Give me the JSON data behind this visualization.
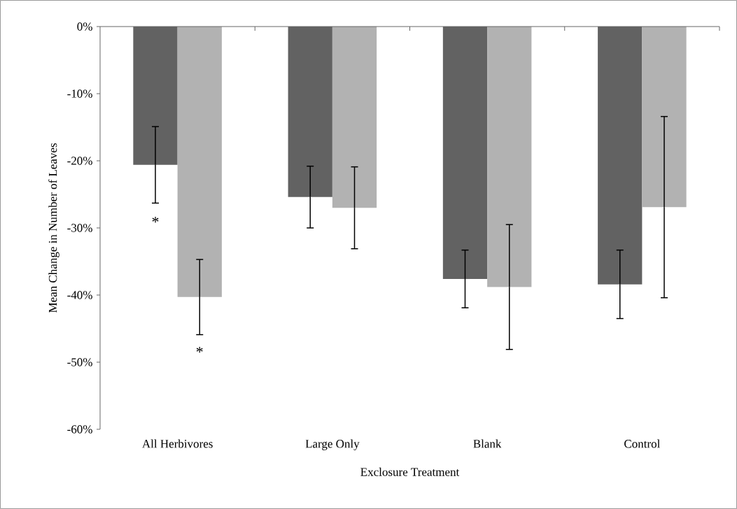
{
  "chart_data": {
    "type": "bar",
    "xlabel": "Exclosure Treatment",
    "ylabel": "Mean Change in Number of Leaves",
    "categories": [
      "All Herbivores",
      "Large Only",
      "Blank",
      "Control"
    ],
    "series": [
      {
        "color": "#626262",
        "values": [
          -20.6,
          -25.4,
          -37.6,
          -38.4
        ],
        "errors": [
          5.7,
          4.6,
          4.3,
          5.1
        ]
      },
      {
        "color": "#b2b2b2",
        "values": [
          -40.3,
          -27.0,
          -38.8,
          -26.9
        ],
        "errors": [
          5.6,
          6.1,
          9.3,
          13.5
        ]
      }
    ],
    "ylim": [
      -60,
      0
    ],
    "yticks": [
      {
        "value": -60,
        "label": "-60%"
      },
      {
        "value": -50,
        "label": "-50%"
      },
      {
        "value": -40,
        "label": "-40%"
      },
      {
        "value": -30,
        "label": "-30%"
      },
      {
        "value": -20,
        "label": "-20%"
      },
      {
        "value": -10,
        "label": "-10%"
      },
      {
        "value": 0,
        "label": "0%"
      }
    ],
    "annotations": [
      "*",
      "*"
    ],
    "grid": false
  }
}
